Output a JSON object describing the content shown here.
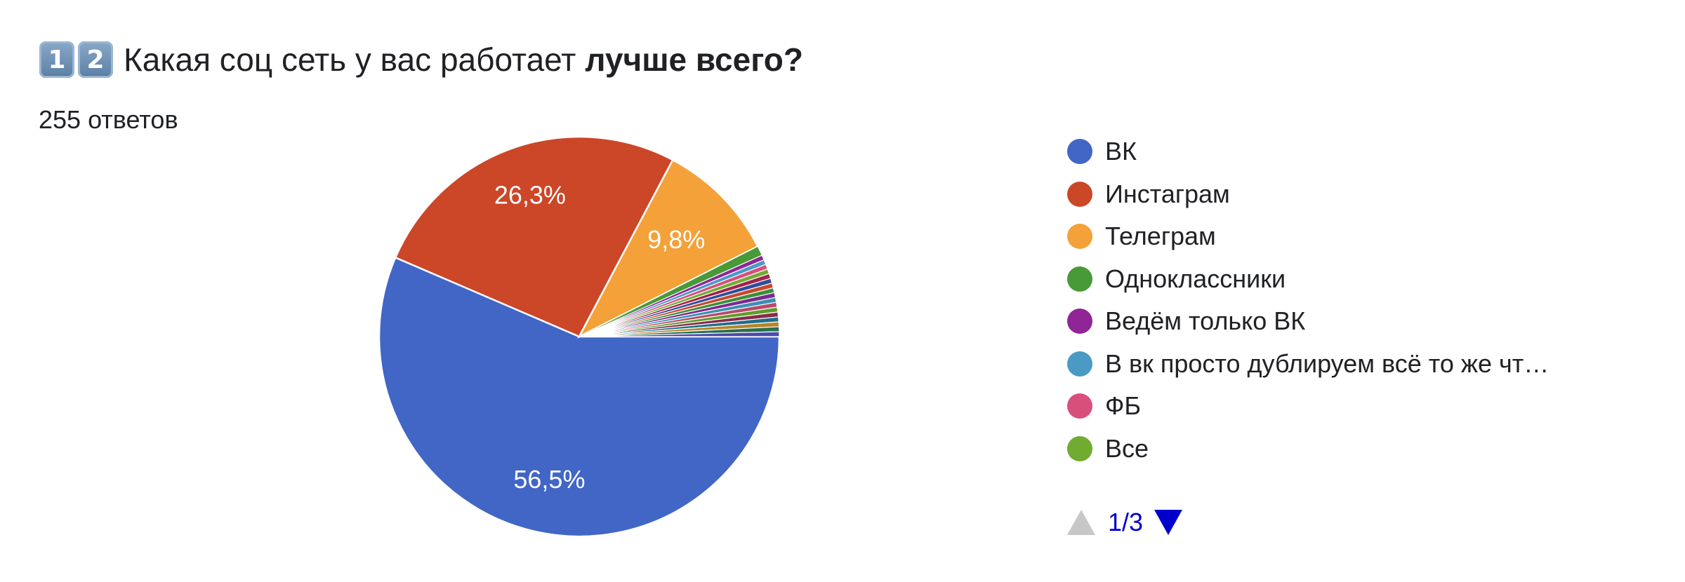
{
  "header": {
    "keycaps": [
      "1",
      "2"
    ],
    "title_regular": "Какая соц сеть у вас работает",
    "title_bold": "лучше всего?"
  },
  "response_count": "255 ответов",
  "pager": {
    "page": "1/3"
  },
  "legend_visible": [
    {
      "label": "ВК",
      "color": "#4166c6"
    },
    {
      "label": "Инстаграм",
      "color": "#cc4628"
    },
    {
      "label": "Телеграм",
      "color": "#f3a138"
    },
    {
      "label": "Одноклассники",
      "color": "#479a37"
    },
    {
      "label": "Ведём только ВК",
      "color": "#902597"
    },
    {
      "label": "В вк просто дублируем всё то же чт…",
      "color": "#4a9ac4"
    },
    {
      "label": "ФБ",
      "color": "#d94f7b"
    },
    {
      "label": "Все",
      "color": "#71ab31"
    }
  ],
  "chart_data": {
    "type": "pie",
    "total": 255,
    "categories": [
      "ВК",
      "Инстаграм",
      "Телеграм",
      "Одноклассники",
      "Ведём только ВК",
      "В вк просто дублируем всё то же чт…",
      "ФБ",
      "Все"
    ],
    "values": [
      144,
      67,
      25,
      2,
      1,
      1,
      1,
      1
    ],
    "percent_labels": [
      "56,5%",
      "26,3%",
      "9,8%",
      "",
      "",
      "",
      "",
      ""
    ],
    "other_small_slices": 13,
    "other_small_colors": [
      "#a3234b",
      "#2f4f9b",
      "#c9482b",
      "#3b8f3b",
      "#7a2a8c",
      "#3d8fb3",
      "#b84a6b",
      "#5e9c2a",
      "#8a2a4a",
      "#1f6f8b",
      "#b4862b",
      "#2b6f4f",
      "#4b4bab"
    ],
    "legend_position": "right"
  }
}
